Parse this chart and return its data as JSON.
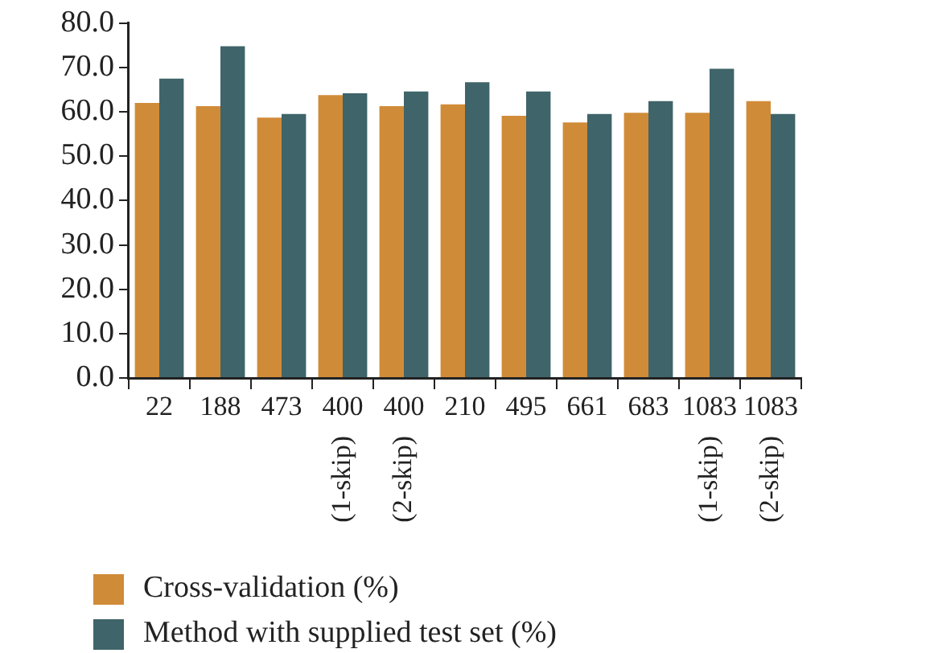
{
  "chart_data": {
    "type": "bar",
    "categories": [
      "22",
      "188",
      "473",
      "400 (1-skip)",
      "400 (2-skip)",
      "210",
      "495",
      "661",
      "683",
      "1083 (1-skip)",
      "1083 (2-skip)"
    ],
    "series": [
      {
        "name": "Cross-validation (%)",
        "color": "#d08b38",
        "values": [
          62.0,
          61.3,
          58.7,
          63.8,
          61.3,
          61.7,
          59.1,
          57.6,
          59.8,
          59.8,
          62.4
        ]
      },
      {
        "name": "Method with supplied test set (%)",
        "color": "#3f6469",
        "values": [
          67.5,
          74.8,
          59.5,
          64.2,
          64.6,
          66.7,
          64.6,
          59.5,
          62.4,
          69.7,
          59.5
        ]
      }
    ],
    "ylim": [
      0,
      80
    ],
    "yticks": [
      {
        "value": 0,
        "label": "0.0"
      },
      {
        "value": 10,
        "label": "10.0"
      },
      {
        "value": 20,
        "label": "20.0"
      },
      {
        "value": 30,
        "label": "30.0"
      },
      {
        "value": 40,
        "label": "40.0"
      },
      {
        "value": 50,
        "label": "50.0"
      },
      {
        "value": 60,
        "label": "60.0"
      },
      {
        "value": 70,
        "label": "70.0"
      },
      {
        "value": 80,
        "label": "80.0"
      }
    ],
    "grid": false,
    "legend": "bottom"
  }
}
